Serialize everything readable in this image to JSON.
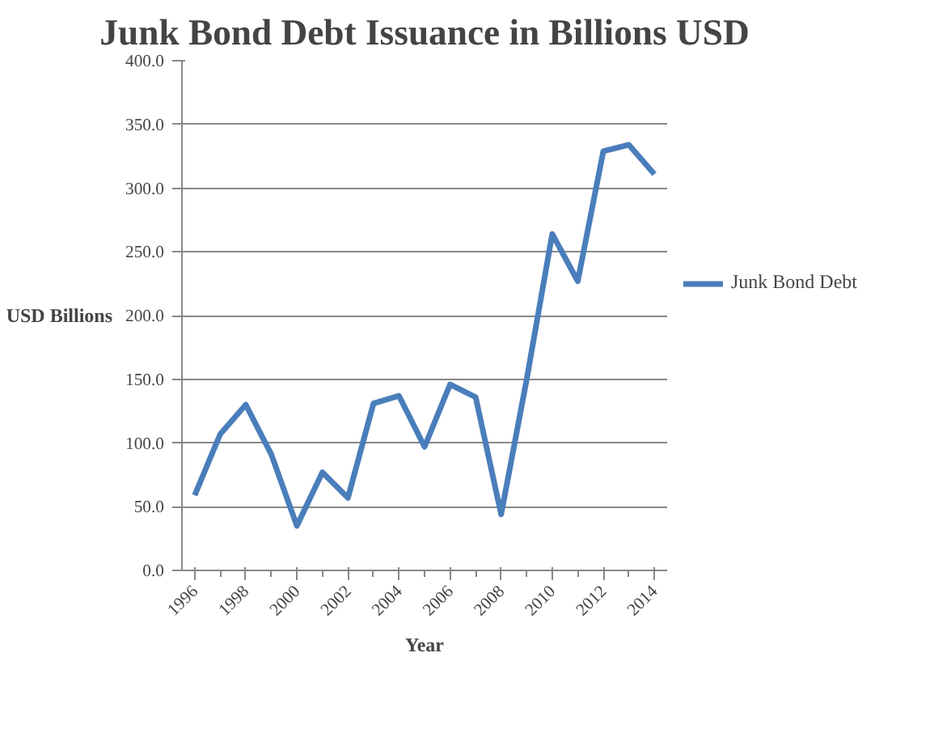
{
  "chart_data": {
    "type": "line",
    "title": "Junk Bond Debt Issuance in Billions USD",
    "xlabel": "Year",
    "ylabel": "USD Billions",
    "categories": [
      "1996",
      null,
      "1998",
      null,
      "2000",
      null,
      "2002",
      null,
      "2004",
      null,
      "2006",
      null,
      "2008",
      null,
      "2010",
      null,
      "2012",
      null,
      "2014"
    ],
    "series": [
      {
        "name": "Junk Bond Debt",
        "color": "#4a7ebb",
        "values": [
          59,
          107,
          130,
          91,
          35,
          77,
          57,
          131,
          137,
          97,
          146,
          136,
          44,
          150,
          264,
          227,
          329,
          334,
          311
        ]
      }
    ],
    "ylim": [
      0,
      400
    ],
    "yticks": [
      {
        "value": 0,
        "label": "0.0"
      },
      {
        "value": 50,
        "label": "50.0"
      },
      {
        "value": 100,
        "label": "100.0"
      },
      {
        "value": 150,
        "label": "150.0"
      },
      {
        "value": 200,
        "label": "200.0"
      },
      {
        "value": 250,
        "label": "250.0"
      },
      {
        "value": 300,
        "label": "300.0"
      },
      {
        "value": 350,
        "label": "350.0"
      },
      {
        "value": 400,
        "label": "400.0"
      }
    ],
    "grid": "y",
    "legend": "right",
    "marker": "none",
    "line_style": "solid"
  }
}
